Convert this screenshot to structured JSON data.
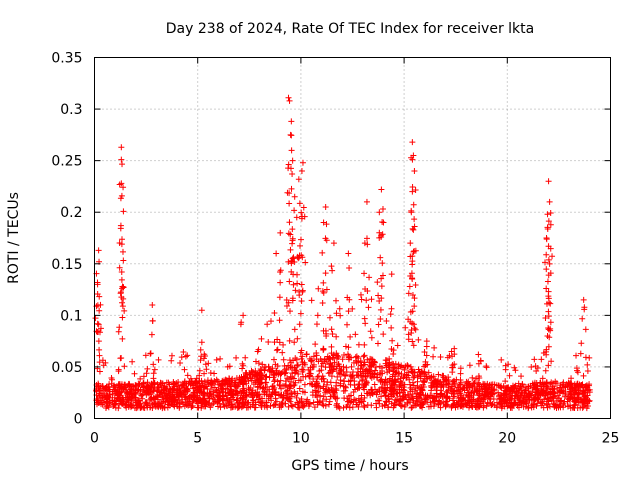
{
  "chart_data": {
    "type": "scatter",
    "title": "Day 238 of 2024, Rate Of TEC Index for receiver lkta",
    "xlabel": "GPS time / hours",
    "ylabel": "ROTI / TECUs",
    "xlim": [
      0,
      25
    ],
    "ylim": [
      0,
      0.35
    ],
    "xticks": [
      0,
      5,
      10,
      15,
      20,
      25
    ],
    "yticks": [
      0,
      0.05,
      0.1,
      0.15,
      0.2,
      0.25,
      0.3,
      0.35
    ],
    "xtick_labels": [
      "0",
      "5",
      "10",
      "15",
      "20",
      "25"
    ],
    "ytick_labels": [
      "0",
      "0.05",
      "0.1",
      "0.15",
      "0.2",
      "0.25",
      "0.3",
      "0.35"
    ],
    "grid": true,
    "marker": "+",
    "series": [
      {
        "name": "ROTI",
        "color": "#ff0000",
        "base_level": [
          {
            "x": 0,
            "y": 0.02
          },
          {
            "x": 2,
            "y": 0.02
          },
          {
            "x": 5,
            "y": 0.022
          },
          {
            "x": 7,
            "y": 0.025
          },
          {
            "x": 8.5,
            "y": 0.035
          },
          {
            "x": 10,
            "y": 0.045
          },
          {
            "x": 12,
            "y": 0.045
          },
          {
            "x": 14,
            "y": 0.04
          },
          {
            "x": 16,
            "y": 0.03
          },
          {
            "x": 18,
            "y": 0.022
          },
          {
            "x": 20,
            "y": 0.018
          },
          {
            "x": 22,
            "y": 0.022
          },
          {
            "x": 24,
            "y": 0.02
          }
        ],
        "peaks": [
          {
            "x": 1.3,
            "y": 0.263
          },
          {
            "x": 1.3,
            "y": 0.251
          },
          {
            "x": 1.3,
            "y": 0.228
          },
          {
            "x": 1.28,
            "y": 0.187
          },
          {
            "x": 1.32,
            "y": 0.142
          },
          {
            "x": 0.2,
            "y": 0.163
          },
          {
            "x": 0.22,
            "y": 0.152
          },
          {
            "x": 0.15,
            "y": 0.13
          },
          {
            "x": 9.4,
            "y": 0.311
          },
          {
            "x": 9.45,
            "y": 0.308
          },
          {
            "x": 9.5,
            "y": 0.275
          },
          {
            "x": 9.55,
            "y": 0.26
          },
          {
            "x": 9.6,
            "y": 0.25
          },
          {
            "x": 9.7,
            "y": 0.215
          },
          {
            "x": 9.8,
            "y": 0.195
          },
          {
            "x": 10.1,
            "y": 0.248
          },
          {
            "x": 10.05,
            "y": 0.24
          },
          {
            "x": 9.9,
            "y": 0.232
          },
          {
            "x": 11.1,
            "y": 0.19
          },
          {
            "x": 11.2,
            "y": 0.205
          },
          {
            "x": 13.2,
            "y": 0.21
          },
          {
            "x": 13.1,
            "y": 0.17
          },
          {
            "x": 13.9,
            "y": 0.222
          },
          {
            "x": 13.8,
            "y": 0.2
          },
          {
            "x": 14.0,
            "y": 0.19
          },
          {
            "x": 15.4,
            "y": 0.268
          },
          {
            "x": 15.45,
            "y": 0.255
          },
          {
            "x": 15.5,
            "y": 0.24
          },
          {
            "x": 15.4,
            "y": 0.22
          },
          {
            "x": 15.35,
            "y": 0.2
          },
          {
            "x": 15.3,
            "y": 0.17
          },
          {
            "x": 22.0,
            "y": 0.23
          },
          {
            "x": 22.05,
            "y": 0.21
          },
          {
            "x": 21.95,
            "y": 0.198
          },
          {
            "x": 21.9,
            "y": 0.175
          },
          {
            "x": 22.0,
            "y": 0.167
          },
          {
            "x": 22.0,
            "y": 0.123
          },
          {
            "x": 23.7,
            "y": 0.115
          },
          {
            "x": 2.8,
            "y": 0.11
          },
          {
            "x": 5.2,
            "y": 0.105
          },
          {
            "x": 7.2,
            "y": 0.1
          },
          {
            "x": 8.8,
            "y": 0.16
          },
          {
            "x": 9.0,
            "y": 0.18
          },
          {
            "x": 12.3,
            "y": 0.16
          },
          {
            "x": 11.6,
            "y": 0.17
          },
          {
            "x": 14.4,
            "y": 0.14
          },
          {
            "x": 16.1,
            "y": 0.075
          },
          {
            "x": 17.3,
            "y": 0.065
          },
          {
            "x": 18.6,
            "y": 0.062
          }
        ]
      }
    ]
  }
}
